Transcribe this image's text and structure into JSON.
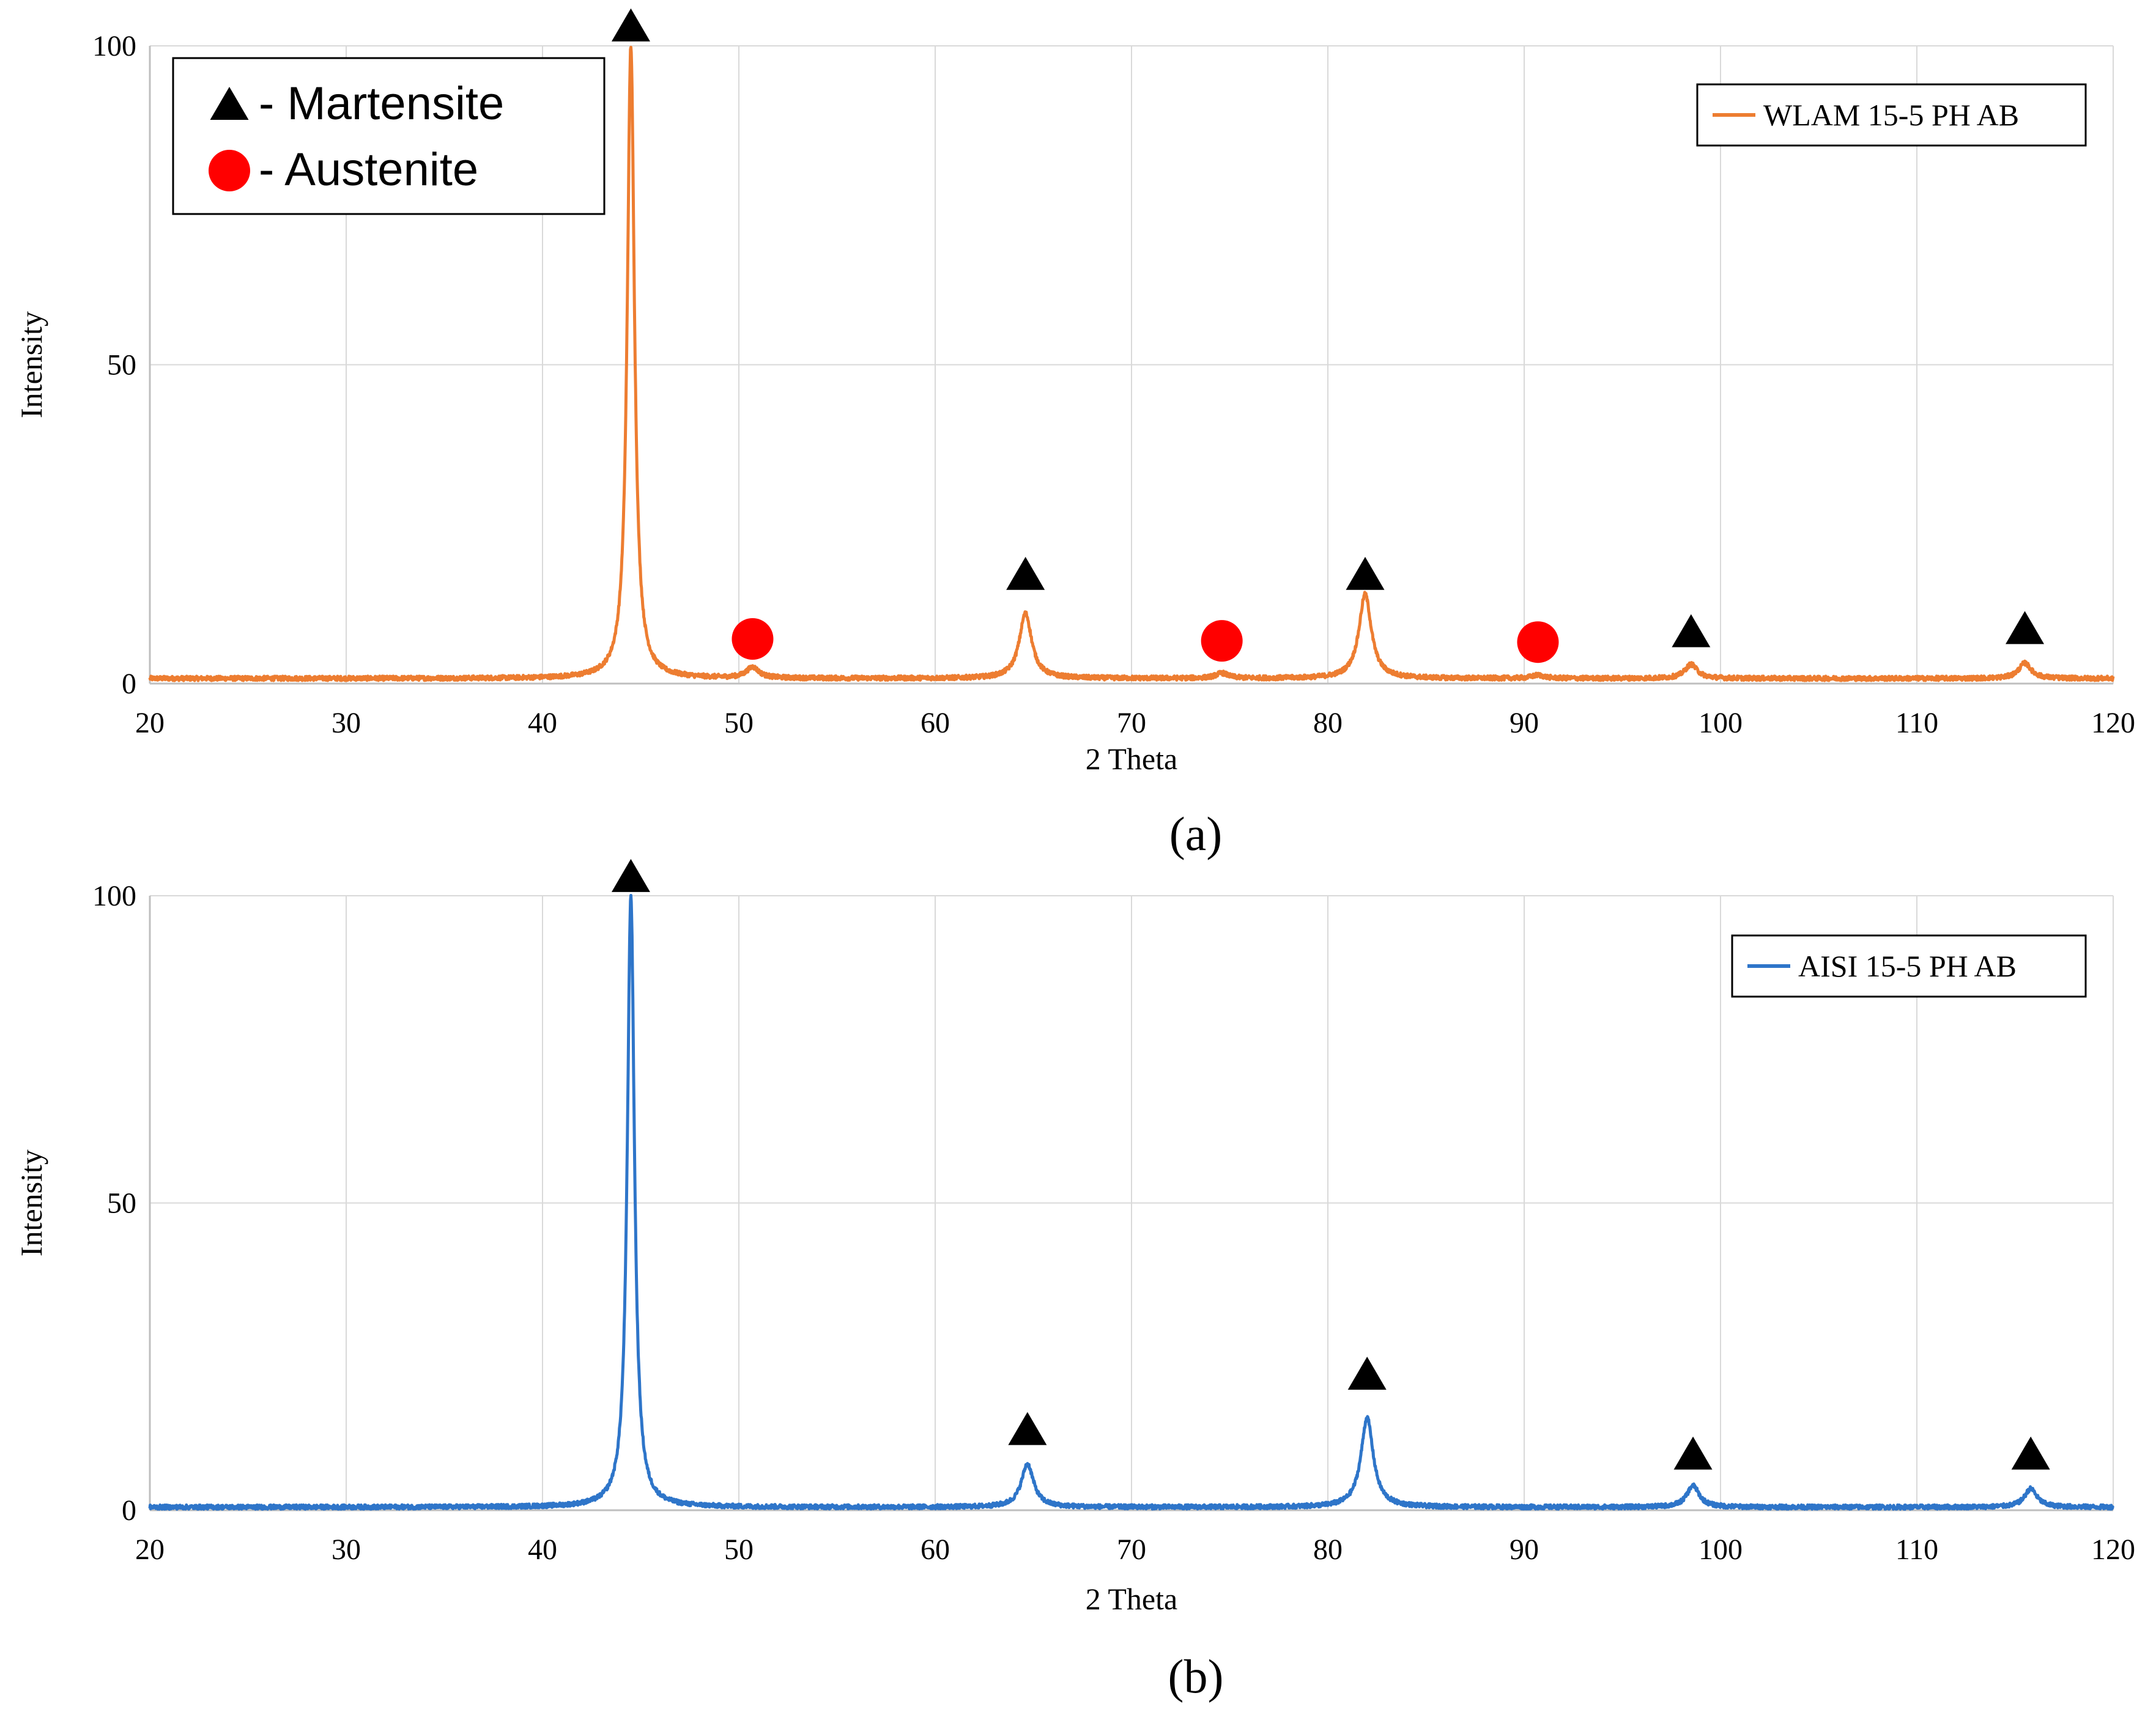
{
  "colors": {
    "grid": "#d9d9d9",
    "axis": "#bfbfbf",
    "martensite_marker": "#000000",
    "austenite_marker": "#ff0000"
  },
  "phase_key": {
    "martensite": "- Martensite",
    "austenite": "- Austenite",
    "martensite_icon": "filled-triangle",
    "austenite_icon": "filled-circle"
  },
  "chart_data": [
    {
      "type": "line",
      "caption": "(a)",
      "xlabel": "2 Theta",
      "ylabel": "Intensity",
      "xlim": [
        20,
        120
      ],
      "ylim": [
        0,
        100
      ],
      "x_ticks": [
        "20",
        "30",
        "40",
        "50",
        "60",
        "70",
        "80",
        "90",
        "100",
        "110",
        "120"
      ],
      "y_ticks": [
        "0",
        "50",
        "100"
      ],
      "grid": true,
      "legend_position": "top-right",
      "series": [
        {
          "name": "WLAM 15-5 PH AB",
          "color": "#ed7d31",
          "baseline": 0.8,
          "peaks": [
            {
              "x": 44.5,
              "y": 100,
              "phase": "martensite"
            },
            {
              "x": 50.7,
              "y": 2.5,
              "phase": "austenite"
            },
            {
              "x": 64.6,
              "y": 11,
              "phase": "martensite"
            },
            {
              "x": 74.6,
              "y": 1.6,
              "phase": "austenite"
            },
            {
              "x": 81.9,
              "y": 14,
              "phase": "martensite"
            },
            {
              "x": 90.7,
              "y": 1.3,
              "phase": "austenite"
            },
            {
              "x": 98.5,
              "y": 3,
              "phase": "martensite"
            },
            {
              "x": 115.5,
              "y": 3.2,
              "phase": "martensite"
            }
          ]
        }
      ],
      "annotations": [
        {
          "marker": "martensite",
          "x": 44.5,
          "y": 103
        },
        {
          "marker": "austenite",
          "x": 50.7,
          "y": 7
        },
        {
          "marker": "martensite",
          "x": 64.6,
          "y": 17
        },
        {
          "marker": "austenite",
          "x": 74.6,
          "y": 6.7
        },
        {
          "marker": "martensite",
          "x": 81.9,
          "y": 17
        },
        {
          "marker": "austenite",
          "x": 90.7,
          "y": 6.5
        },
        {
          "marker": "martensite",
          "x": 98.5,
          "y": 8
        },
        {
          "marker": "martensite",
          "x": 115.5,
          "y": 8.5
        }
      ]
    },
    {
      "type": "line",
      "caption": "(b)",
      "xlabel": "2 Theta",
      "ylabel": "Intensity",
      "xlim": [
        20,
        120
      ],
      "ylim": [
        0,
        100
      ],
      "x_ticks": [
        "20",
        "30",
        "40",
        "50",
        "60",
        "70",
        "80",
        "90",
        "100",
        "110",
        "120"
      ],
      "y_ticks": [
        "0",
        "50",
        "100"
      ],
      "grid": true,
      "legend_position": "top-right",
      "series": [
        {
          "name": "AISI 15-5 PH AB",
          "color": "#2e75c9",
          "baseline": 0.5,
          "peaks": [
            {
              "x": 44.5,
              "y": 100,
              "phase": "martensite"
            },
            {
              "x": 64.7,
              "y": 7.5,
              "phase": "martensite"
            },
            {
              "x": 82.0,
              "y": 15,
              "phase": "martensite"
            },
            {
              "x": 98.6,
              "y": 4,
              "phase": "martensite"
            },
            {
              "x": 115.8,
              "y": 3.5,
              "phase": "martensite"
            }
          ]
        }
      ],
      "annotations": [
        {
          "marker": "martensite",
          "x": 44.5,
          "y": 103
        },
        {
          "marker": "martensite",
          "x": 64.7,
          "y": 13
        },
        {
          "marker": "martensite",
          "x": 82.0,
          "y": 22
        },
        {
          "marker": "martensite",
          "x": 98.6,
          "y": 9
        },
        {
          "marker": "martensite",
          "x": 115.8,
          "y": 9
        }
      ]
    }
  ]
}
